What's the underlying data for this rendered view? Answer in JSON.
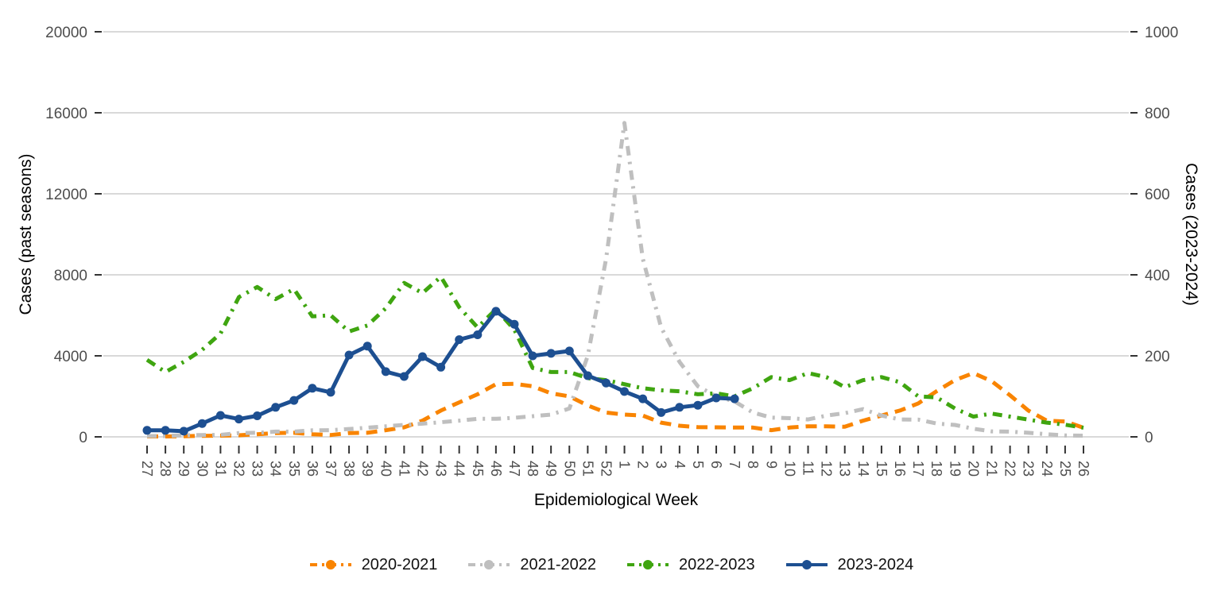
{
  "chart_data": {
    "type": "line",
    "title": "",
    "xlabel": "Epidemiological Week",
    "ylabel_left": "Cases (past seasons)",
    "ylabel_right": "Cases (2023-2024)",
    "grid": "horizontal-only",
    "legend_position": "bottom",
    "background": "#ffffff",
    "gridline_color": "#d9d9d9",
    "tick_text_color": "#4d4d4d",
    "x_categories": [
      "27",
      "28",
      "29",
      "30",
      "31",
      "32",
      "33",
      "34",
      "35",
      "36",
      "37",
      "38",
      "39",
      "40",
      "41",
      "42",
      "43",
      "44",
      "45",
      "46",
      "47",
      "48",
      "49",
      "50",
      "51",
      "52",
      "1",
      "2",
      "3",
      "4",
      "5",
      "6",
      "7",
      "8",
      "9",
      "10",
      "11",
      "12",
      "13",
      "14",
      "15",
      "16",
      "17",
      "18",
      "19",
      "20",
      "21",
      "22",
      "23",
      "24",
      "25",
      "26"
    ],
    "left_axis": {
      "range": [
        0,
        20000
      ],
      "ticks": [
        0,
        4000,
        8000,
        12000,
        16000,
        20000
      ]
    },
    "right_axis": {
      "range": [
        0,
        1000
      ],
      "ticks": [
        0,
        200,
        400,
        600,
        800,
        1000
      ]
    },
    "series": [
      {
        "name": "2020-2021",
        "color": "#f98400",
        "axis": "left",
        "style": "dashed",
        "values": [
          20,
          20,
          30,
          50,
          60,
          80,
          130,
          190,
          200,
          130,
          90,
          190,
          200,
          330,
          470,
          800,
          1300,
          1700,
          2100,
          2600,
          2620,
          2500,
          2150,
          2000,
          1550,
          1200,
          1100,
          1050,
          700,
          550,
          480,
          470,
          460,
          460,
          330,
          460,
          520,
          520,
          500,
          800,
          1050,
          1300,
          1650,
          2250,
          2800,
          3150,
          2750,
          2050,
          1300,
          800,
          760,
          450
        ]
      },
      {
        "name": "2021-2022",
        "color": "#bfbfbf",
        "axis": "left",
        "style": "dashdot",
        "values": [
          40,
          40,
          80,
          90,
          100,
          190,
          200,
          260,
          260,
          320,
          330,
          390,
          450,
          520,
          590,
          650,
          720,
          800,
          890,
          890,
          940,
          1020,
          1100,
          1400,
          4000,
          8800,
          15500,
          8800,
          5400,
          3700,
          2500,
          2000,
          1750,
          1200,
          950,
          920,
          860,
          1050,
          1170,
          1370,
          1050,
          860,
          850,
          660,
          590,
          400,
          270,
          260,
          200,
          130,
          70,
          60
        ]
      },
      {
        "name": "2022-2023",
        "color": "#3fa510",
        "axis": "left",
        "style": "dashdot",
        "values": [
          3800,
          3200,
          3700,
          4300,
          5100,
          6900,
          7400,
          6800,
          7300,
          5950,
          6000,
          5200,
          5500,
          6350,
          7600,
          7100,
          7900,
          6400,
          5400,
          6300,
          5300,
          3400,
          3200,
          3200,
          2900,
          2800,
          2600,
          2400,
          2300,
          2250,
          2100,
          2150,
          2000,
          2400,
          2950,
          2800,
          3150,
          2950,
          2450,
          2800,
          2950,
          2700,
          2000,
          1950,
          1400,
          1000,
          1150,
          1000,
          850,
          700,
          600,
          450
        ]
      },
      {
        "name": "2023-2024",
        "color": "#1d4f91",
        "axis": "right",
        "style": "solid-points",
        "values": [
          16,
          16,
          14,
          33,
          53,
          44,
          52,
          73,
          90,
          120,
          110,
          202,
          224,
          161,
          149,
          198,
          172,
          240,
          252,
          310,
          278,
          200,
          206,
          212,
          151,
          133,
          112,
          94,
          60,
          73,
          78,
          96,
          94,
          null,
          null,
          null,
          null,
          null,
          null,
          null,
          null,
          null,
          null,
          null,
          null,
          null,
          null,
          null,
          null,
          null,
          null,
          null
        ]
      }
    ]
  }
}
